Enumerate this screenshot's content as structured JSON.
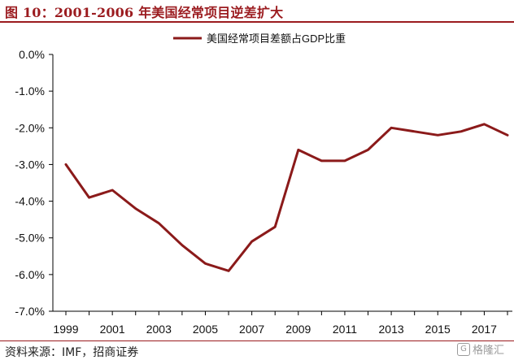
{
  "figure": {
    "title": "图 10：2001-2006 年美国经常项目逆差扩大",
    "source": "资料来源：IMF，招商证券",
    "watermark": "格隆汇",
    "accent_color": "#9b1b1f"
  },
  "chart_data": {
    "type": "line",
    "x": [
      1999,
      2000,
      2001,
      2002,
      2003,
      2004,
      2005,
      2006,
      2007,
      2008,
      2009,
      2010,
      2011,
      2012,
      2013,
      2014,
      2015,
      2016,
      2017,
      2018
    ],
    "x_tick_labels": [
      "1999",
      "2001",
      "2003",
      "2005",
      "2007",
      "2009",
      "2011",
      "2013",
      "2015",
      "2017"
    ],
    "series": [
      {
        "name": "美国经常项目差额占GDP比重",
        "color": "#8b1a1a",
        "values": [
          -3.0,
          -3.9,
          -3.7,
          -4.2,
          -4.6,
          -5.2,
          -5.7,
          -5.9,
          -5.1,
          -4.7,
          -2.6,
          -2.9,
          -2.9,
          -2.6,
          -2.0,
          -2.1,
          -2.2,
          -2.1,
          -1.9,
          -2.2
        ]
      }
    ],
    "y_ticks": [
      "0.0%",
      "-1.0%",
      "-2.0%",
      "-3.0%",
      "-4.0%",
      "-5.0%",
      "-6.0%",
      "-7.0%"
    ],
    "ylim": [
      -7.0,
      0.0
    ],
    "grid": false,
    "legend_position": "top-center"
  }
}
